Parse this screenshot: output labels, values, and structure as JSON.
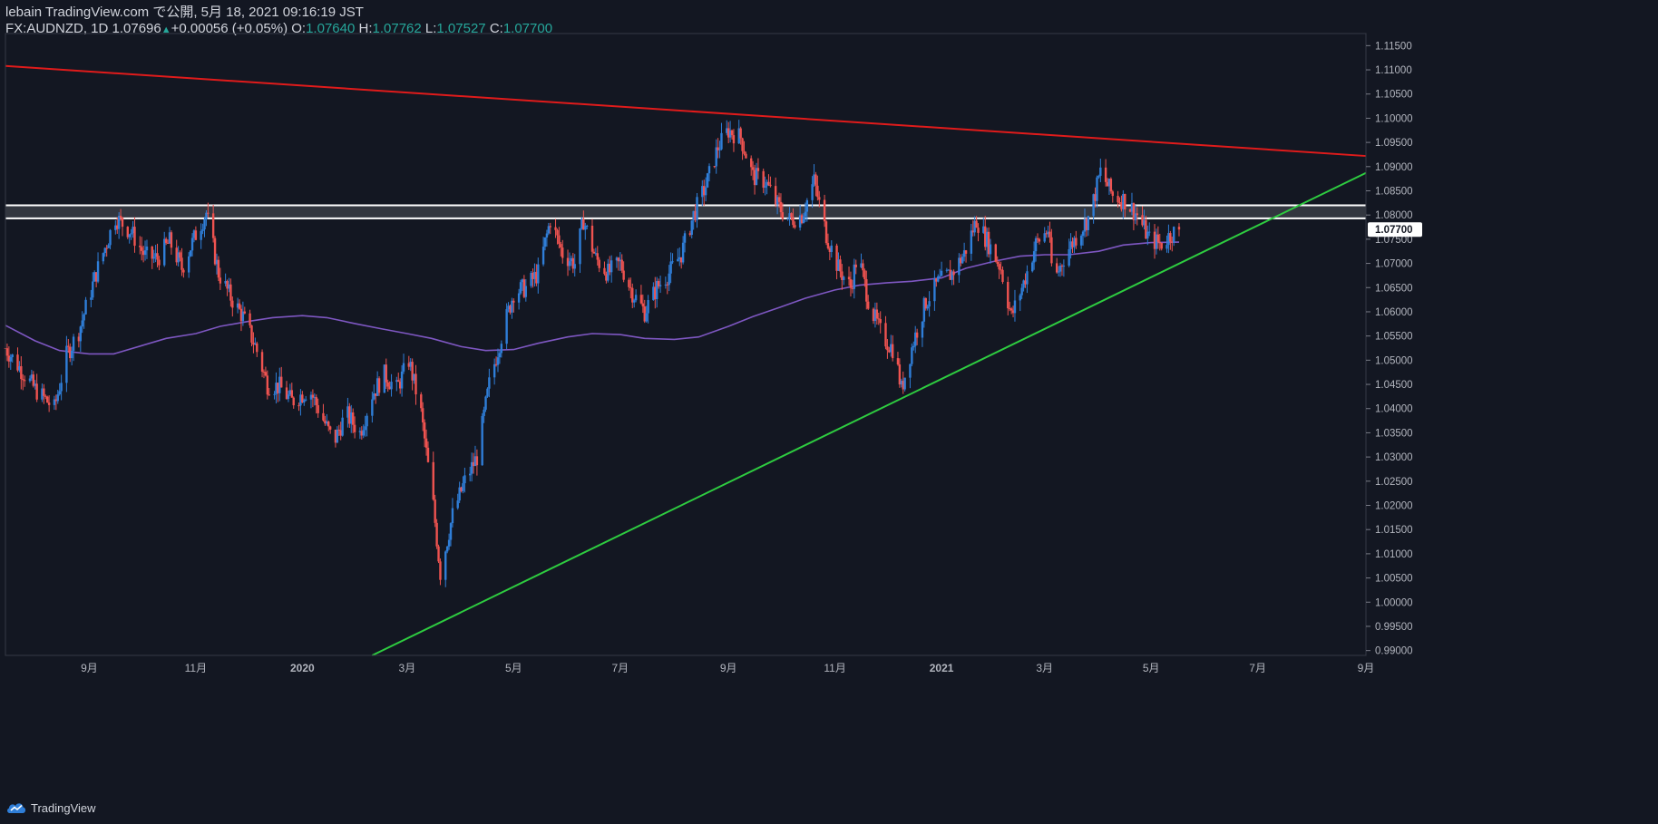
{
  "header": {
    "publish_line": "lebain TradingView.com で公開, 5月 18, 2021 09:16:19 JST",
    "symbol": "FX:AUDNZD, 1D",
    "last": "1.07696",
    "arrow": "▲",
    "change": "+0.00056 (+0.05%)",
    "o_label": "O:",
    "o_value": "1.07640",
    "h_label": "H:",
    "h_value": "1.07762",
    "l_label": "L:",
    "l_value": "1.07527",
    "c_label": "C:",
    "c_value": "1.07700"
  },
  "footer": {
    "brand": "TradingView",
    "logo_icon": "tradingview-cloud-logo-icon"
  },
  "colors": {
    "background": "#131722",
    "up_candle": "#2f7ed8",
    "down_candle": "#ef5350",
    "resistance_line": "#e01b1b",
    "support_line": "#2ecc40",
    "moving_average": "#7e57c2",
    "zone_fill": "#3a3d45",
    "zone_border": "#ffffff",
    "price_tag_bg": "#ffffff",
    "price_tag_text": "#131722",
    "axis_text": "#b2b5be"
  },
  "chart_data": {
    "type": "candlestick",
    "symbol": "FX:AUDNZD",
    "interval": "1D",
    "ylim": [
      0.989,
      1.1175
    ],
    "y_ticks": [
      "1.11500",
      "1.11000",
      "1.10500",
      "1.10000",
      "1.09500",
      "1.09000",
      "1.08500",
      "1.08000",
      "1.07500",
      "1.07000",
      "1.06500",
      "1.06000",
      "1.05500",
      "1.05000",
      "1.04500",
      "1.04000",
      "1.03500",
      "1.03000",
      "1.02500",
      "1.02000",
      "1.01500",
      "1.01000",
      "1.00500",
      "1.00000",
      "0.99500",
      "0.99000"
    ],
    "x_range": [
      "2019-07-15",
      "2021-09-01"
    ],
    "x_ticks": [
      {
        "date": "2019-09-01",
        "label": "9月"
      },
      {
        "date": "2019-11-01",
        "label": "11月"
      },
      {
        "date": "2020-01-01",
        "label": "2020"
      },
      {
        "date": "2020-03-01",
        "label": "3月"
      },
      {
        "date": "2020-05-01",
        "label": "5月"
      },
      {
        "date": "2020-07-01",
        "label": "7月"
      },
      {
        "date": "2020-09-01",
        "label": "9月"
      },
      {
        "date": "2020-11-01",
        "label": "11月"
      },
      {
        "date": "2021-01-01",
        "label": "2021"
      },
      {
        "date": "2021-03-01",
        "label": "3月"
      },
      {
        "date": "2021-05-01",
        "label": "5月"
      },
      {
        "date": "2021-07-01",
        "label": "7月"
      },
      {
        "date": "2021-09-01",
        "label": "9月"
      }
    ],
    "close_path": [
      [
        "2019-07-15",
        1.0525
      ],
      [
        "2019-08-01",
        1.044
      ],
      [
        "2019-08-12",
        1.04
      ],
      [
        "2019-08-19",
        1.051
      ],
      [
        "2019-08-26",
        1.056
      ],
      [
        "2019-09-05",
        1.068
      ],
      [
        "2019-09-16",
        1.0795
      ],
      [
        "2019-09-25",
        1.0765
      ],
      [
        "2019-10-03",
        1.0715
      ],
      [
        "2019-10-10",
        1.071
      ],
      [
        "2019-10-17",
        1.0745
      ],
      [
        "2019-10-24",
        1.069
      ],
      [
        "2019-11-01",
        1.076
      ],
      [
        "2019-11-07",
        1.0805
      ],
      [
        "2019-11-14",
        1.068
      ],
      [
        "2019-11-21",
        1.063
      ],
      [
        "2019-11-28",
        1.059
      ],
      [
        "2019-12-05",
        1.053
      ],
      [
        "2019-12-12",
        1.045
      ],
      [
        "2019-12-19",
        1.0445
      ],
      [
        "2019-12-26",
        1.0415
      ],
      [
        "2020-01-05",
        1.044
      ],
      [
        "2020-01-12",
        1.0385
      ],
      [
        "2020-01-19",
        1.033
      ],
      [
        "2020-01-26",
        1.039
      ],
      [
        "2020-02-03",
        1.035
      ],
      [
        "2020-02-10",
        1.043
      ],
      [
        "2020-02-17",
        1.047
      ],
      [
        "2020-02-24",
        1.044
      ],
      [
        "2020-03-02",
        1.05
      ],
      [
        "2020-03-09",
        1.039
      ],
      [
        "2020-03-16",
        1.02
      ],
      [
        "2020-03-20",
        1.006
      ],
      [
        "2020-03-27",
        1.018
      ],
      [
        "2020-04-03",
        1.025
      ],
      [
        "2020-04-10",
        1.03
      ],
      [
        "2020-04-17",
        1.045
      ],
      [
        "2020-04-24",
        1.055
      ],
      [
        "2020-05-01",
        1.064
      ],
      [
        "2020-05-08",
        1.065
      ],
      [
        "2020-05-15",
        1.068
      ],
      [
        "2020-05-22",
        1.079
      ],
      [
        "2020-05-29",
        1.072
      ],
      [
        "2020-06-05",
        1.07
      ],
      [
        "2020-06-10",
        1.079
      ],
      [
        "2020-06-17",
        1.071
      ],
      [
        "2020-06-24",
        1.068
      ],
      [
        "2020-07-01",
        1.07
      ],
      [
        "2020-07-08",
        1.064
      ],
      [
        "2020-07-15",
        1.06
      ],
      [
        "2020-07-22",
        1.065
      ],
      [
        "2020-07-29",
        1.068
      ],
      [
        "2020-08-05",
        1.072
      ],
      [
        "2020-08-12",
        1.08
      ],
      [
        "2020-08-19",
        1.086
      ],
      [
        "2020-08-26",
        1.094
      ],
      [
        "2020-09-01",
        1.0975
      ],
      [
        "2020-09-08",
        1.096
      ],
      [
        "2020-09-15",
        1.088
      ],
      [
        "2020-09-22",
        1.087
      ],
      [
        "2020-09-29",
        1.082
      ],
      [
        "2020-10-06",
        1.079
      ],
      [
        "2020-10-13",
        1.08
      ],
      [
        "2020-10-20",
        1.087
      ],
      [
        "2020-10-27",
        1.076
      ],
      [
        "2020-11-03",
        1.069
      ],
      [
        "2020-11-10",
        1.065
      ],
      [
        "2020-11-14",
        1.072
      ],
      [
        "2020-11-21",
        1.061
      ],
      [
        "2020-11-28",
        1.055
      ],
      [
        "2020-12-05",
        1.052
      ],
      [
        "2020-12-09",
        1.044
      ],
      [
        "2020-12-16",
        1.054
      ],
      [
        "2020-12-23",
        1.062
      ],
      [
        "2020-12-30",
        1.066
      ],
      [
        "2021-01-07",
        1.068
      ],
      [
        "2021-01-14",
        1.072
      ],
      [
        "2021-01-21",
        1.079
      ],
      [
        "2021-01-28",
        1.074
      ],
      [
        "2021-02-04",
        1.069
      ],
      [
        "2021-02-10",
        1.059
      ],
      [
        "2021-02-17",
        1.066
      ],
      [
        "2021-02-24",
        1.074
      ],
      [
        "2021-03-03",
        1.077
      ],
      [
        "2021-03-06",
        1.066
      ],
      [
        "2021-03-13",
        1.072
      ],
      [
        "2021-03-20",
        1.076
      ],
      [
        "2021-03-27",
        1.08
      ],
      [
        "2021-04-02",
        1.089
      ],
      [
        "2021-04-09",
        1.084
      ],
      [
        "2021-04-16",
        1.083
      ],
      [
        "2021-04-23",
        1.08
      ],
      [
        "2021-04-30",
        1.075
      ],
      [
        "2021-05-07",
        1.074
      ],
      [
        "2021-05-12",
        1.076
      ],
      [
        "2021-05-17",
        1.077
      ]
    ],
    "moving_average": [
      [
        "2019-07-15",
        1.0572
      ],
      [
        "2019-08-01",
        1.054
      ],
      [
        "2019-08-15",
        1.052
      ],
      [
        "2019-09-01",
        1.0513
      ],
      [
        "2019-09-15",
        1.0513
      ],
      [
        "2019-10-01",
        1.053
      ],
      [
        "2019-10-15",
        1.0545
      ],
      [
        "2019-11-01",
        1.0555
      ],
      [
        "2019-11-15",
        1.057
      ],
      [
        "2019-12-01",
        1.058
      ],
      [
        "2019-12-15",
        1.0588
      ],
      [
        "2020-01-01",
        1.0592
      ],
      [
        "2020-01-15",
        1.0588
      ],
      [
        "2020-02-01",
        1.0575
      ],
      [
        "2020-02-15",
        1.0565
      ],
      [
        "2020-03-01",
        1.0555
      ],
      [
        "2020-03-15",
        1.0545
      ],
      [
        "2020-04-01",
        1.0528
      ],
      [
        "2020-04-15",
        1.052
      ],
      [
        "2020-05-01",
        1.0522
      ],
      [
        "2020-05-15",
        1.0535
      ],
      [
        "2020-06-01",
        1.0548
      ],
      [
        "2020-06-15",
        1.0555
      ],
      [
        "2020-07-01",
        1.0553
      ],
      [
        "2020-07-15",
        1.0545
      ],
      [
        "2020-08-01",
        1.0543
      ],
      [
        "2020-08-15",
        1.0548
      ],
      [
        "2020-09-01",
        1.057
      ],
      [
        "2020-09-15",
        1.059
      ],
      [
        "2020-10-01",
        1.061
      ],
      [
        "2020-10-15",
        1.0628
      ],
      [
        "2020-11-01",
        1.0645
      ],
      [
        "2020-11-15",
        1.0655
      ],
      [
        "2020-12-01",
        1.066
      ],
      [
        "2020-12-15",
        1.0663
      ],
      [
        "2021-01-01",
        1.067
      ],
      [
        "2021-01-15",
        1.069
      ],
      [
        "2021-02-01",
        1.0705
      ],
      [
        "2021-02-15",
        1.0715
      ],
      [
        "2021-03-01",
        1.0718
      ],
      [
        "2021-03-15",
        1.0718
      ],
      [
        "2021-04-01",
        1.0725
      ],
      [
        "2021-04-15",
        1.0738
      ],
      [
        "2021-05-01",
        1.0743
      ],
      [
        "2021-05-17",
        1.0744
      ]
    ],
    "trendlines": [
      {
        "role": "resistance",
        "from": [
          "2019-07-15",
          1.1108
        ],
        "to": [
          "2021-09-01",
          1.0922
        ]
      },
      {
        "role": "support",
        "from": [
          "2020-02-10",
          0.989
        ],
        "to": [
          "2021-09-01",
          1.0887
        ]
      }
    ],
    "zone": {
      "from": 1.0793,
      "to": 1.082
    },
    "last_price_label": "1.07700",
    "last_price": 1.077,
    "grid": false,
    "legend": "none"
  }
}
